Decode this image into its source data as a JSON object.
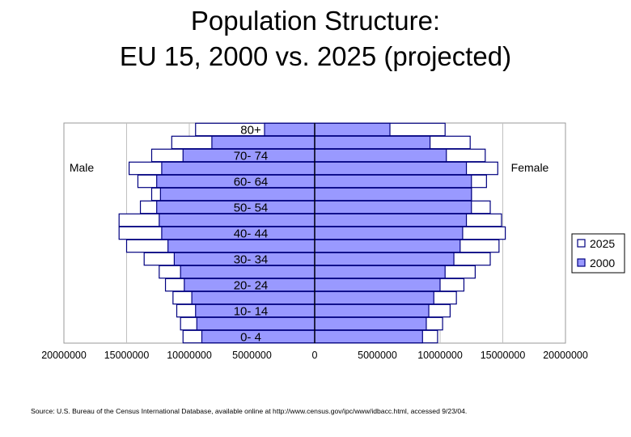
{
  "slide": {
    "title_line1": "Population Structure:",
    "title_line2": "EU 15, 2000 vs. 2025 (projected)",
    "source": "Source: U.S. Bureau of the Census International Database, available online at http://www.census.gov/ipc/www/idbacc.html, accessed 9/23/04."
  },
  "chart_data": {
    "type": "bar",
    "orientation": "horizontal",
    "style": "population pyramid (overlapping)",
    "categories": [
      "0- 4",
      "5- 9",
      "10- 14",
      "15- 19",
      "20- 24",
      "25- 29",
      "30- 34",
      "35- 39",
      "40- 44",
      "45- 49",
      "50- 54",
      "55- 59",
      "60- 64",
      "65- 69",
      "70- 74",
      "75- 79",
      "80+"
    ],
    "visible_tick_labels": [
      "80+",
      "70- 74",
      "60- 64",
      "50- 54",
      "40- 44",
      "30- 34",
      "20- 24",
      "10- 14",
      "0- 4"
    ],
    "male_label": "Male",
    "female_label": "Female",
    "xlim": [
      -20000000,
      20000000
    ],
    "xticks": [
      -20000000,
      -15000000,
      -10000000,
      -5000000,
      0,
      5000000,
      10000000,
      15000000,
      20000000
    ],
    "xtick_labels": [
      "20000000",
      "15000000",
      "10000000",
      "5000000",
      "0",
      "5000000",
      "10000000",
      "15000000",
      "20000000"
    ],
    "legend_position": "right",
    "grid": "vertical",
    "colors": {
      "2000": "#9999ff",
      "2025": "#ffffff",
      "outline": "#000080",
      "plot_bg": "#ffffff",
      "grid": "#c0c0c0"
    },
    "series": [
      {
        "name": "2025",
        "male": [
          10500000,
          10700000,
          11000000,
          11300000,
          11900000,
          12400000,
          13600000,
          15000000,
          15600000,
          15600000,
          13900000,
          13000000,
          14100000,
          14800000,
          13000000,
          11400000,
          9500000
        ],
        "female": [
          9800000,
          10200000,
          10800000,
          11300000,
          11900000,
          12800000,
          14000000,
          14700000,
          15200000,
          14900000,
          14000000,
          12500000,
          13700000,
          14600000,
          13600000,
          12400000,
          10400000
        ]
      },
      {
        "name": "2000",
        "male": [
          9000000,
          9400000,
          9500000,
          9800000,
          10400000,
          10700000,
          11200000,
          11700000,
          12200000,
          12400000,
          12600000,
          12300000,
          12600000,
          12200000,
          10500000,
          8200000,
          4000000
        ],
        "female": [
          8600000,
          8900000,
          9100000,
          9500000,
          10000000,
          10400000,
          11100000,
          11600000,
          11800000,
          12100000,
          12500000,
          12500000,
          12500000,
          12100000,
          10500000,
          9200000,
          6000000
        ]
      }
    ]
  }
}
